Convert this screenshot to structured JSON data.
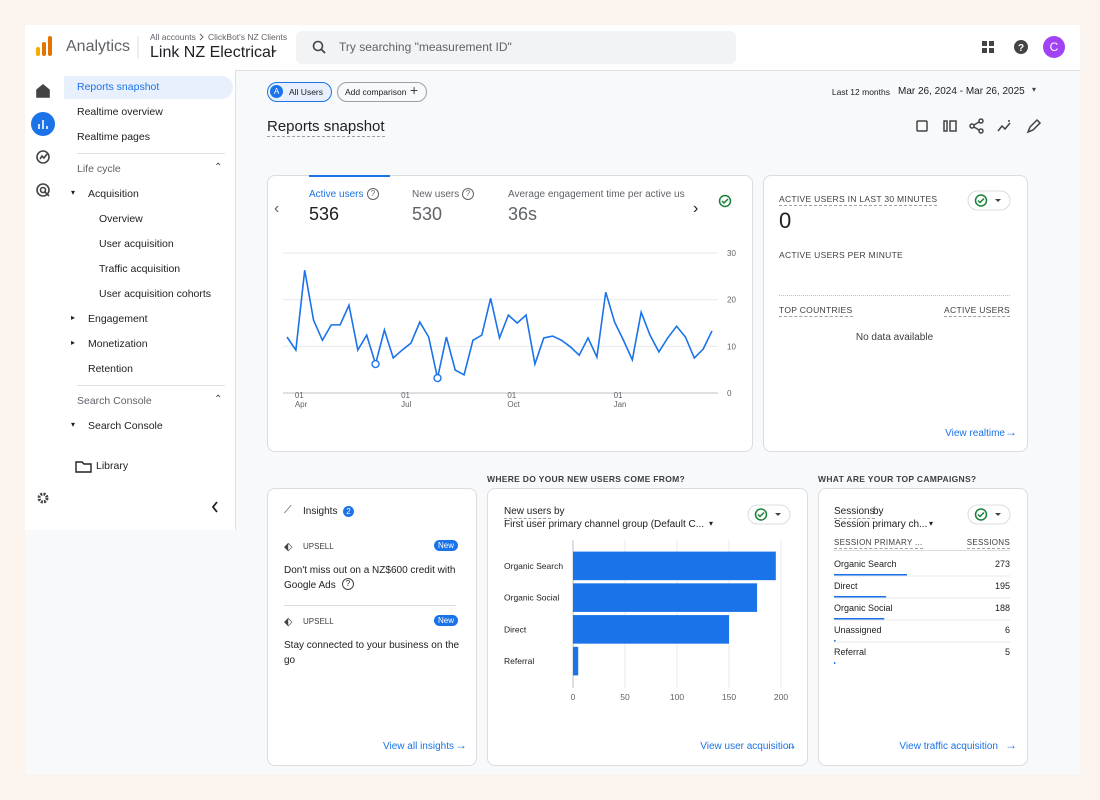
{
  "header": {
    "product": "Analytics",
    "breadcrumb": [
      "All accounts",
      "ClickBot's NZ Clients"
    ],
    "property": "Link NZ Electrical",
    "search_placeholder": "Try searching \"measurement ID\"",
    "avatar": "C"
  },
  "nav": [
    {
      "label": "Reports snapshot",
      "kind": "item",
      "active": true
    },
    {
      "label": "Realtime overview",
      "kind": "item"
    },
    {
      "label": "Realtime pages",
      "kind": "item"
    },
    {
      "label": "Life cycle",
      "kind": "section"
    },
    {
      "label": "Acquisition",
      "kind": "group",
      "open": true
    },
    {
      "label": "Overview",
      "kind": "sub"
    },
    {
      "label": "User acquisition",
      "kind": "sub"
    },
    {
      "label": "Traffic acquisition",
      "kind": "sub"
    },
    {
      "label": "User acquisition cohorts",
      "kind": "sub"
    },
    {
      "label": "Engagement",
      "kind": "group",
      "open": false
    },
    {
      "label": "Monetization",
      "kind": "group",
      "open": false
    },
    {
      "label": "Retention",
      "kind": "leaf"
    },
    {
      "label": "Search Console",
      "kind": "section"
    },
    {
      "label": "Search Console",
      "kind": "group",
      "open": true
    }
  ],
  "library": "Library",
  "toolbar": {
    "badge": "A",
    "segment": "All Users",
    "add_comparison": "Add comparison",
    "date_preset": "Last 12 months",
    "date_range": "Mar 26, 2024 - Mar 26, 2025",
    "title": "Reports snapshot"
  },
  "overview": {
    "metrics": [
      {
        "label": "Active users",
        "value": 536
      },
      {
        "label": "New users",
        "value": 530
      },
      {
        "label": "Average engagement time per active us",
        "value": "36s"
      }
    ]
  },
  "realtime": {
    "title": "ACTIVE USERS IN LAST 30 MINUTES",
    "value": 0,
    "per_minute": "ACTIVE USERS PER MINUTE",
    "col1": "TOP COUNTRIES",
    "col2": "ACTIVE USERS",
    "empty": "No data available",
    "link": "View realtime"
  },
  "sections": {
    "new_users": "WHERE DO YOUR NEW USERS COME FROM?",
    "campaigns": "WHAT ARE YOUR TOP CAMPAIGNS?"
  },
  "insights": {
    "title": "Insights",
    "count": 2,
    "items": [
      {
        "tag": "UPSELL",
        "badge": "New",
        "text": "Don't miss out on a NZ$600 credit with Google Ads"
      },
      {
        "tag": "UPSELL",
        "badge": "New",
        "text": "Stay connected to your business on the go"
      }
    ],
    "link": "View all insights"
  },
  "chart_data": [
    {
      "type": "line",
      "color": "#1a73e8",
      "categories": [
        null,
        "01\nApr",
        null,
        null,
        null,
        null,
        null,
        null,
        null,
        null,
        null,
        null,
        null,
        "01\nJul",
        null,
        null,
        null,
        null,
        null,
        null,
        null,
        null,
        null,
        null,
        null,
        "01\nOct",
        null,
        null,
        null,
        null,
        null,
        null,
        null,
        null,
        null,
        null,
        null,
        "01\nJan",
        null,
        null,
        null,
        null,
        null,
        null,
        null,
        null,
        null,
        null,
        null
      ],
      "values": [
        12,
        9.2,
        26.3,
        15.6,
        11.3,
        14.6,
        14.6,
        18.8,
        9.2,
        12.4,
        6.2,
        13.5,
        7.5,
        9.2,
        10.7,
        15.2,
        12,
        3.2,
        12,
        4.9,
        3.9,
        11.3,
        12.4,
        20.3,
        11.8,
        16.7,
        15,
        16.7,
        6.2,
        11.8,
        12.2,
        11.3,
        9.9,
        8.1,
        11.8,
        7.7,
        21.6,
        15.2,
        11.3,
        7.1,
        17.3,
        12.4,
        8.8,
        11.8,
        14.3,
        12,
        7.5,
        9.4,
        13.3
      ],
      "markers": [
        10,
        17
      ],
      "ylim": [
        0,
        30
      ],
      "yticks": [
        0,
        10,
        20,
        30
      ],
      "grid": true
    },
    {
      "type": "bar",
      "orientation": "horizontal",
      "metric": "New users",
      "by": "by",
      "dimension": "First user primary channel group (Default C...",
      "categories": [
        "Organic Search",
        "Organic Social",
        "Direct",
        "Referral"
      ],
      "values": [
        195,
        177,
        150,
        5
      ],
      "color": "#1a73e8",
      "xlim": [
        0,
        200
      ],
      "xticks": [
        0,
        50,
        100,
        150,
        200
      ],
      "grid": true,
      "link": "View user acquisition"
    }
  ],
  "campaigns": {
    "metric": "Sessions",
    "by": "by",
    "dimension": "Session primary ch...",
    "col1": "SESSION PRIMARY ...",
    "col2": "SESSIONS",
    "rows": [
      {
        "label": "Organic Search",
        "value": 273
      },
      {
        "label": "Direct",
        "value": 195
      },
      {
        "label": "Organic Social",
        "value": 188
      },
      {
        "label": "Unassigned",
        "value": 6
      },
      {
        "label": "Referral",
        "value": 5
      }
    ],
    "color": "#1a73e8",
    "link": "View traffic acquisition"
  }
}
